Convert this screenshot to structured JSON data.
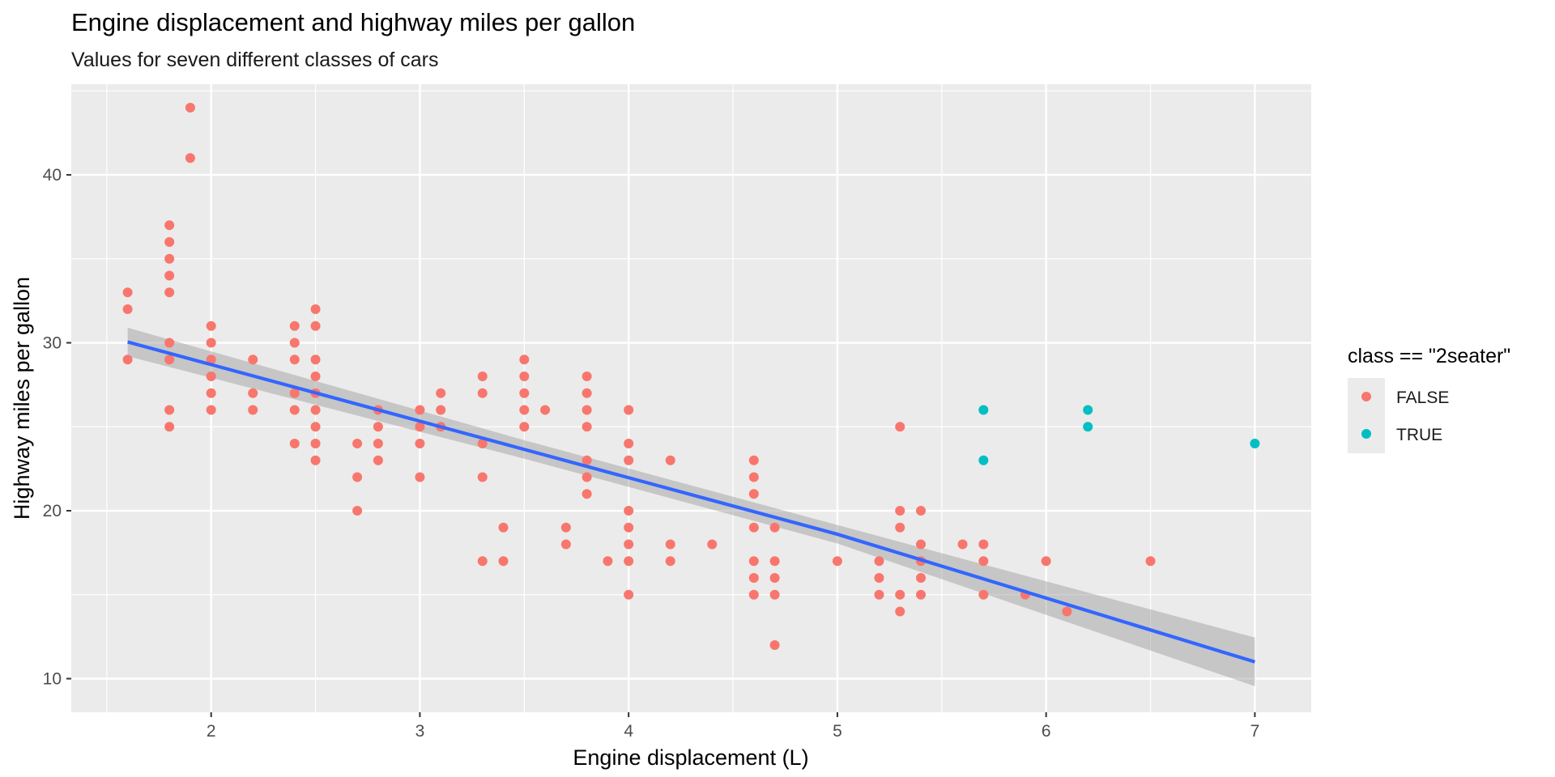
{
  "chart_data": {
    "type": "scatter",
    "title": "Engine displacement and highway miles per gallon",
    "subtitle": "Values for seven different classes of cars",
    "xlabel": "Engine displacement (L)",
    "ylabel": "Highway miles per gallon",
    "xlim": [
      1.33,
      7.27
    ],
    "ylim": [
      8.0,
      45.4
    ],
    "x_ticks": [
      2,
      3,
      4,
      5,
      6,
      7
    ],
    "y_ticks": [
      10,
      20,
      30,
      40
    ],
    "grid": true,
    "legend": {
      "title": "class == \"2seater\"",
      "position": "right",
      "entries": [
        {
          "label": "FALSE",
          "color": "#F8766D"
        },
        {
          "label": "TRUE",
          "color": "#00BFC4"
        }
      ]
    },
    "series": [
      {
        "name": "FALSE",
        "color": "#F8766D",
        "points": [
          [
            1.6,
            33
          ],
          [
            1.6,
            32
          ],
          [
            1.6,
            29
          ],
          [
            1.8,
            37
          ],
          [
            1.8,
            36
          ],
          [
            1.8,
            35
          ],
          [
            1.8,
            34
          ],
          [
            1.8,
            33
          ],
          [
            1.8,
            30
          ],
          [
            1.8,
            29
          ],
          [
            1.8,
            26
          ],
          [
            1.8,
            25
          ],
          [
            1.9,
            44
          ],
          [
            1.9,
            41
          ],
          [
            2.0,
            31
          ],
          [
            2.0,
            30
          ],
          [
            2.0,
            29
          ],
          [
            2.0,
            28
          ],
          [
            2.0,
            27
          ],
          [
            2.0,
            26
          ],
          [
            2.2,
            29
          ],
          [
            2.2,
            27
          ],
          [
            2.2,
            26
          ],
          [
            2.4,
            31
          ],
          [
            2.4,
            30
          ],
          [
            2.4,
            29
          ],
          [
            2.4,
            27
          ],
          [
            2.4,
            26
          ],
          [
            2.4,
            24
          ],
          [
            2.5,
            32
          ],
          [
            2.5,
            31
          ],
          [
            2.5,
            29
          ],
          [
            2.5,
            28
          ],
          [
            2.5,
            27
          ],
          [
            2.5,
            26
          ],
          [
            2.5,
            25
          ],
          [
            2.5,
            24
          ],
          [
            2.5,
            23
          ],
          [
            2.7,
            24
          ],
          [
            2.7,
            22
          ],
          [
            2.7,
            20
          ],
          [
            2.8,
            26
          ],
          [
            2.8,
            25
          ],
          [
            2.8,
            24
          ],
          [
            2.8,
            23
          ],
          [
            3.0,
            26
          ],
          [
            3.0,
            25
          ],
          [
            3.0,
            24
          ],
          [
            3.0,
            22
          ],
          [
            3.1,
            27
          ],
          [
            3.1,
            26
          ],
          [
            3.1,
            25
          ],
          [
            3.3,
            28
          ],
          [
            3.3,
            27
          ],
          [
            3.3,
            24
          ],
          [
            3.3,
            22
          ],
          [
            3.3,
            17
          ],
          [
            3.4,
            19
          ],
          [
            3.4,
            17
          ],
          [
            3.5,
            29
          ],
          [
            3.5,
            28
          ],
          [
            3.5,
            27
          ],
          [
            3.5,
            26
          ],
          [
            3.5,
            25
          ],
          [
            3.6,
            26
          ],
          [
            3.7,
            19
          ],
          [
            3.7,
            18
          ],
          [
            3.8,
            28
          ],
          [
            3.8,
            27
          ],
          [
            3.8,
            26
          ],
          [
            3.8,
            25
          ],
          [
            3.8,
            23
          ],
          [
            3.8,
            22
          ],
          [
            3.8,
            21
          ],
          [
            3.9,
            17
          ],
          [
            4.0,
            26
          ],
          [
            4.0,
            24
          ],
          [
            4.0,
            23
          ],
          [
            4.0,
            20
          ],
          [
            4.0,
            19
          ],
          [
            4.0,
            18
          ],
          [
            4.0,
            17
          ],
          [
            4.0,
            15
          ],
          [
            4.2,
            23
          ],
          [
            4.2,
            18
          ],
          [
            4.2,
            17
          ],
          [
            4.4,
            18
          ],
          [
            4.6,
            23
          ],
          [
            4.6,
            22
          ],
          [
            4.6,
            21
          ],
          [
            4.6,
            19
          ],
          [
            4.6,
            17
          ],
          [
            4.6,
            16
          ],
          [
            4.6,
            15
          ],
          [
            4.7,
            19
          ],
          [
            4.7,
            17
          ],
          [
            4.7,
            16
          ],
          [
            4.7,
            15
          ],
          [
            4.7,
            12
          ],
          [
            5.0,
            17
          ],
          [
            5.2,
            17
          ],
          [
            5.2,
            16
          ],
          [
            5.2,
            15
          ],
          [
            5.3,
            25
          ],
          [
            5.3,
            20
          ],
          [
            5.3,
            19
          ],
          [
            5.3,
            15
          ],
          [
            5.3,
            14
          ],
          [
            5.4,
            20
          ],
          [
            5.4,
            18
          ],
          [
            5.4,
            17
          ],
          [
            5.4,
            16
          ],
          [
            5.4,
            15
          ],
          [
            5.6,
            18
          ],
          [
            5.7,
            18
          ],
          [
            5.7,
            17
          ],
          [
            5.7,
            15
          ],
          [
            5.9,
            15
          ],
          [
            6.0,
            17
          ],
          [
            6.1,
            14
          ],
          [
            6.5,
            17
          ]
        ]
      },
      {
        "name": "TRUE",
        "color": "#00BFC4",
        "points": [
          [
            5.7,
            26
          ],
          [
            5.7,
            23
          ],
          [
            6.2,
            26
          ],
          [
            6.2,
            25
          ],
          [
            7.0,
            24
          ]
        ]
      }
    ],
    "trend_line": {
      "method": "lm",
      "color": "#3366FF",
      "ribbon_color": "#999999",
      "points": [
        {
          "x": 1.6,
          "y": 30.05,
          "lo": 29.2,
          "hi": 30.9
        },
        {
          "x": 3.5,
          "y": 23.65,
          "lo": 23.1,
          "hi": 24.2
        },
        {
          "x": 5.0,
          "y": 18.6,
          "lo": 18.05,
          "hi": 19.15
        },
        {
          "x": 7.0,
          "y": 11.0,
          "lo": 9.55,
          "hi": 12.45
        }
      ]
    }
  }
}
